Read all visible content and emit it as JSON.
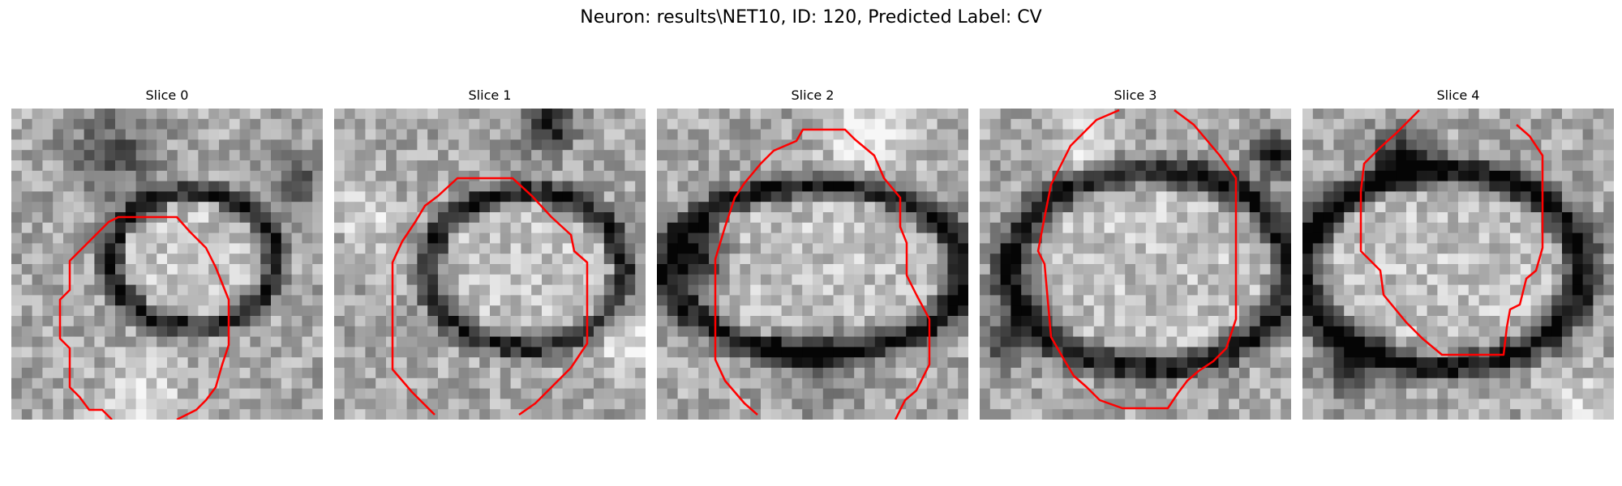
{
  "figure": {
    "title": "Neuron: results\\NET10, ID: 120, Predicted Label: CV",
    "contour_color": "#ff0000"
  },
  "slices": [
    {
      "title": "Slice 0"
    },
    {
      "title": "Slice 1"
    },
    {
      "title": "Slice 2"
    },
    {
      "title": "Slice 3"
    },
    {
      "title": "Slice 4"
    }
  ]
}
